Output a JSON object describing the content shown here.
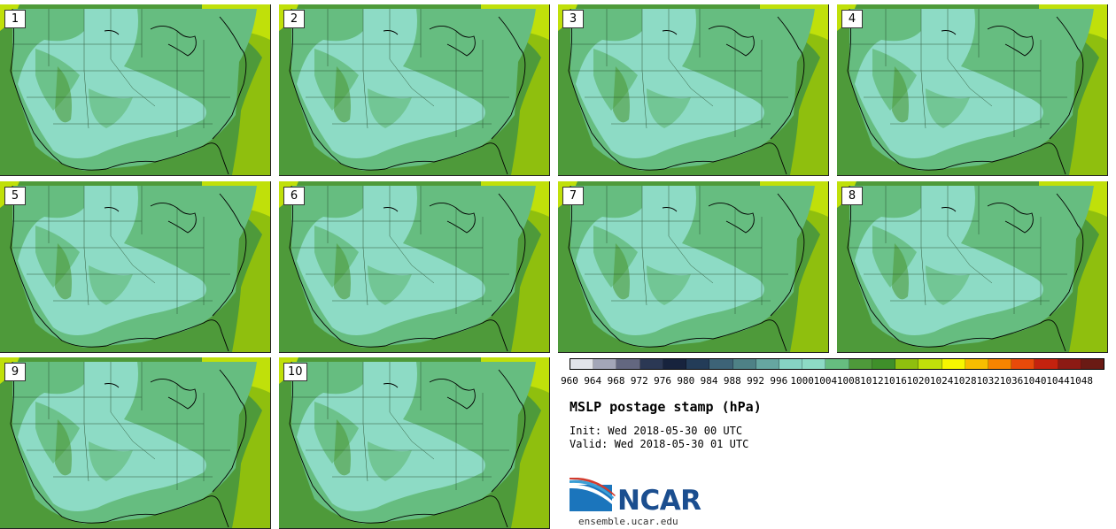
{
  "panels": [
    {
      "label": "1"
    },
    {
      "label": "2"
    },
    {
      "label": "3"
    },
    {
      "label": "4"
    },
    {
      "label": "5"
    },
    {
      "label": "6"
    },
    {
      "label": "7"
    },
    {
      "label": "8"
    },
    {
      "label": "9"
    },
    {
      "label": "10"
    }
  ],
  "colorbar": {
    "ticks": [
      "960",
      "964",
      "968",
      "972",
      "976",
      "980",
      "984",
      "988",
      "992",
      "996",
      "1000",
      "1004",
      "1008",
      "1012",
      "1016",
      "1020",
      "1024",
      "1028",
      "1032",
      "1036",
      "1040",
      "1044",
      "1048"
    ],
    "colors": [
      "#e2e4ea",
      "#a3a6b8",
      "#636780",
      "#2b3854",
      "#17233d",
      "#233c58",
      "#3d6377",
      "#4e8186",
      "#66a6a1",
      "#86d3c3",
      "#8ddbc5",
      "#66bd80",
      "#4e9a3a",
      "#3f8f2a",
      "#8fbf0e",
      "#c0e00a",
      "#f7f700",
      "#f7bd00",
      "#f78400",
      "#e84a0a",
      "#c4220e",
      "#8c1a14",
      "#6a1a14"
    ]
  },
  "title": "MSLP postage stamp (hPa)",
  "init": "Init: Wed 2018-05-30 00 UTC",
  "valid": "Valid: Wed 2018-05-30 01 UTC",
  "logo": {
    "name": "NCAR",
    "website": "ensemble.ucar.edu"
  },
  "map_colors": {
    "ocean_low": "#4e9a3a",
    "land_mid": "#66bd80",
    "land_low": "#8ddbc5",
    "ocean_high": "#8fbf0e",
    "canada_high": "#c0e00a"
  }
}
